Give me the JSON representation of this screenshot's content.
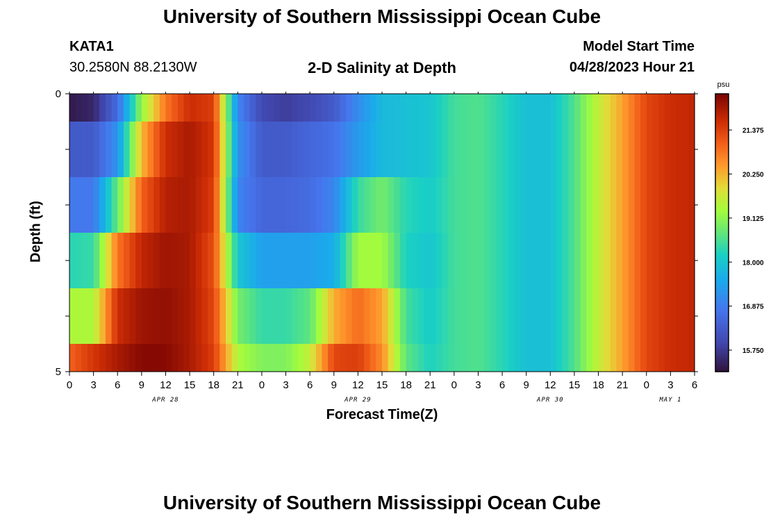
{
  "page_title": "University of Southern Mississippi Ocean Cube",
  "footer_title": "University of Southern Mississippi Ocean Cube",
  "station": {
    "name": "KATA1",
    "coords": "30.2580N  88.2130W"
  },
  "model": {
    "label": "Model Start Time",
    "value": "04/28/2023 Hour 21"
  },
  "chart_data": {
    "type": "heatmap",
    "title": "2-D Salinity at Depth",
    "xlabel": "Forecast Time(Z)",
    "ylabel": "Depth (ft)",
    "units": "psu",
    "x_hours": [
      0,
      3,
      6,
      9,
      12,
      15,
      18,
      21,
      24,
      27,
      30,
      33,
      36,
      39,
      42,
      45,
      48,
      51,
      54,
      57,
      60,
      63,
      66,
      69,
      72,
      75,
      78
    ],
    "x_tick_labels": [
      "0",
      "3",
      "6",
      "9",
      "12",
      "15",
      "18",
      "21",
      "0",
      "3",
      "6",
      "9",
      "12",
      "15",
      "18",
      "21",
      "0",
      "3",
      "6",
      "9",
      "12",
      "15",
      "18",
      "21",
      "0",
      "3",
      "6"
    ],
    "date_labels": [
      {
        "text": "APR 28",
        "hour": 12
      },
      {
        "text": "APR 29",
        "hour": 36
      },
      {
        "text": "APR 30",
        "hour": 60
      },
      {
        "text": "MAY 1",
        "hour": 75
      }
    ],
    "y_range": [
      0,
      5
    ],
    "y_tick_labels": [
      "0",
      "5"
    ],
    "depth_layers": [
      0,
      1,
      2,
      3,
      4,
      5
    ],
    "colorbar": {
      "min": 15.2,
      "max": 22.3,
      "tick_values": [
        15.75,
        16.875,
        18.0,
        19.125,
        20.25,
        21.375
      ],
      "tick_labels": [
        "15.750",
        "16.875",
        "18.000",
        "19.125",
        "20.250",
        "21.375"
      ]
    },
    "series": [
      {
        "name": "layer-0",
        "values": [
          15.3,
          15.5,
          16.6,
          19.2,
          20.8,
          21.6,
          21.4,
          17.0,
          16.0,
          15.8,
          16.0,
          16.3,
          17.1,
          17.8,
          17.9,
          18.0,
          18.5,
          18.6,
          18.3,
          17.9,
          17.9,
          18.6,
          19.6,
          20.4,
          21.3,
          21.6,
          21.7
        ]
      },
      {
        "name": "layer-1",
        "values": [
          16.3,
          16.3,
          17.2,
          20.2,
          21.6,
          21.9,
          21.5,
          17.2,
          16.3,
          16.3,
          16.5,
          16.7,
          17.3,
          17.8,
          17.9,
          18.0,
          18.5,
          18.6,
          18.3,
          17.9,
          17.9,
          18.6,
          19.6,
          20.4,
          21.3,
          21.6,
          21.7
        ]
      },
      {
        "name": "layer-2",
        "values": [
          16.8,
          16.8,
          18.8,
          21.0,
          21.8,
          21.9,
          21.4,
          17.0,
          16.5,
          16.5,
          16.6,
          17.0,
          18.4,
          18.9,
          18.3,
          18.1,
          18.5,
          18.6,
          18.3,
          17.9,
          17.9,
          18.6,
          19.6,
          20.4,
          21.3,
          21.6,
          21.7
        ]
      },
      {
        "name": "layer-3",
        "values": [
          18.3,
          18.4,
          20.8,
          21.7,
          22.0,
          21.9,
          21.2,
          18.0,
          17.4,
          17.4,
          17.4,
          17.6,
          19.3,
          19.3,
          18.2,
          18.0,
          18.5,
          18.6,
          18.3,
          17.9,
          17.9,
          18.6,
          19.6,
          20.4,
          21.3,
          21.6,
          21.7
        ]
      },
      {
        "name": "layer-4",
        "values": [
          19.4,
          19.4,
          21.6,
          22.0,
          22.1,
          21.9,
          21.3,
          18.9,
          18.4,
          18.4,
          18.7,
          20.3,
          20.9,
          20.4,
          18.5,
          18.1,
          18.5,
          18.6,
          18.3,
          17.9,
          17.9,
          18.6,
          19.6,
          20.4,
          21.3,
          21.6,
          21.7
        ]
      },
      {
        "name": "layer-5",
        "values": [
          21.0,
          21.5,
          21.9,
          22.2,
          22.2,
          21.9,
          21.4,
          19.4,
          19.0,
          19.0,
          19.6,
          21.3,
          21.4,
          20.6,
          18.7,
          18.2,
          18.5,
          18.6,
          18.3,
          17.9,
          17.9,
          18.6,
          19.6,
          20.4,
          21.3,
          21.6,
          21.7
        ]
      }
    ]
  }
}
